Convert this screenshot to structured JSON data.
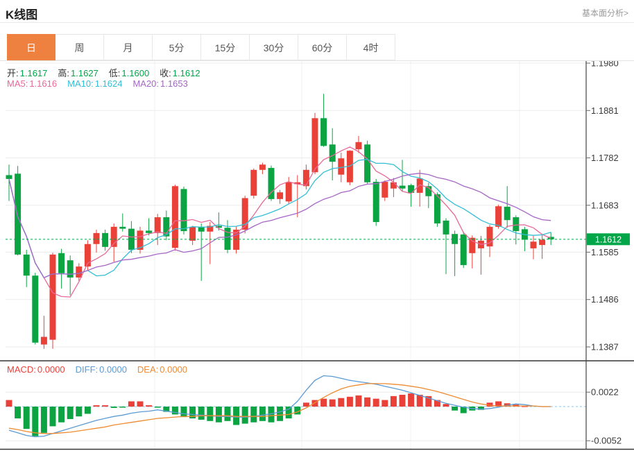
{
  "header": {
    "title": "K线图",
    "link": "基本面分析>"
  },
  "tabs": [
    {
      "key": "day",
      "label": "日",
      "active": true
    },
    {
      "key": "week",
      "label": "周",
      "active": false
    },
    {
      "key": "month",
      "label": "月",
      "active": false
    },
    {
      "key": "5min",
      "label": "5分",
      "active": false
    },
    {
      "key": "15min",
      "label": "15分",
      "active": false
    },
    {
      "key": "30min",
      "label": "30分",
      "active": false
    },
    {
      "key": "60min",
      "label": "60分",
      "active": false
    },
    {
      "key": "4hour",
      "label": "4时",
      "active": false
    }
  ],
  "legend": {
    "ohlc": [
      {
        "label": "开:",
        "value": "1.1617"
      },
      {
        "label": "高:",
        "value": "1.1627"
      },
      {
        "label": "低:",
        "value": "1.1600"
      },
      {
        "label": "收:",
        "value": "1.1612"
      }
    ],
    "ma": [
      {
        "label": "MA5:",
        "value": "1.1616",
        "color": "#e8689a"
      },
      {
        "label": "MA10:",
        "value": "1.1624",
        "color": "#33bdd6"
      },
      {
        "label": "MA20:",
        "value": "1.1653",
        "color": "#a566c5"
      }
    ],
    "macd": [
      {
        "label": "MACD:",
        "value": "0.0000",
        "color": "#e94138"
      },
      {
        "label": "DIFF:",
        "value": "0.0000",
        "color": "#5b9bd5"
      },
      {
        "label": "DEA:",
        "value": "0.0000",
        "color": "#ef8b31"
      }
    ]
  },
  "colors": {
    "up": "#e94138",
    "down": "#0ca443",
    "price_green": "#00a648",
    "tab_active": "#ee8040",
    "grid": "#ececec",
    "vgrid": "#f0f0f0",
    "axis": "#3c3c3c",
    "tick_label": "#3a3a3a",
    "macd_zero_line": "#90c3e6"
  },
  "chart_data": {
    "type": "candlestick",
    "title": "K线图 (日)",
    "price_axis": {
      "side": "right",
      "ticks": [
        {
          "label": "1.1980",
          "price": 1.198
        },
        {
          "label": "1.1881",
          "price": 1.1881
        },
        {
          "label": "1.1782",
          "price": 1.1782
        },
        {
          "label": "1.1683",
          "price": 1.1683
        },
        {
          "label": "1.1585",
          "price": 1.1585
        },
        {
          "label": "1.1486",
          "price": 1.1486
        },
        {
          "label": "1.1387",
          "price": 1.1387
        }
      ],
      "range": [
        1.1387,
        1.198
      ]
    },
    "current_price": {
      "label": "1.1612",
      "price": 1.1612
    },
    "last_candle": {
      "open": 1.1617,
      "high": 1.1627,
      "low": 1.16,
      "close": 1.1612
    },
    "ma_periods": [
      5,
      10,
      20
    ],
    "ma_current": {
      "MA5": 1.1616,
      "MA10": 1.1624,
      "MA20": 1.1653
    },
    "candles": [
      [
        1.1746,
        1.1768,
        1.1692,
        1.1738
      ],
      [
        1.1749,
        1.1765,
        1.1578,
        1.158
      ],
      [
        1.158,
        1.159,
        1.1512,
        1.1536
      ],
      [
        1.1536,
        1.1542,
        1.1392,
        1.1396
      ],
      [
        1.1392,
        1.1452,
        1.1383,
        1.1408
      ],
      [
        1.1402,
        1.1584,
        1.1383,
        1.158
      ],
      [
        1.1583,
        1.1592,
        1.1509,
        1.1541
      ],
      [
        1.1568,
        1.1578,
        1.1495,
        1.1532
      ],
      [
        1.1532,
        1.1562,
        1.1525,
        1.1555
      ],
      [
        1.1555,
        1.161,
        1.1548,
        1.1602
      ],
      [
        1.1602,
        1.1632,
        1.1584,
        1.1625
      ],
      [
        1.1625,
        1.1632,
        1.1588,
        1.1596
      ],
      [
        1.1596,
        1.1645,
        1.1565,
        1.1638
      ],
      [
        1.1638,
        1.1666,
        1.1628,
        1.1634
      ],
      [
        1.1634,
        1.165,
        1.1583,
        1.159
      ],
      [
        1.159,
        1.1638,
        1.1582,
        1.163
      ],
      [
        1.163,
        1.1656,
        1.162,
        1.1625
      ],
      [
        1.1625,
        1.1665,
        1.16,
        1.1658
      ],
      [
        1.1658,
        1.1672,
        1.161,
        1.1618
      ],
      [
        1.1594,
        1.1726,
        1.1588,
        1.1723
      ],
      [
        1.1717,
        1.1722,
        1.1622,
        1.1629
      ],
      [
        1.1609,
        1.164,
        1.16,
        1.1638
      ],
      [
        1.1638,
        1.1645,
        1.1525,
        1.1628
      ],
      [
        1.1628,
        1.1648,
        1.156,
        1.164
      ],
      [
        1.164,
        1.1668,
        1.163,
        1.1636
      ],
      [
        1.1636,
        1.1652,
        1.1583,
        1.159
      ],
      [
        1.159,
        1.164,
        1.1582,
        1.1632
      ],
      [
        1.1632,
        1.1703,
        1.1624,
        1.1698
      ],
      [
        1.1703,
        1.176,
        1.1697,
        1.1757
      ],
      [
        1.1757,
        1.1772,
        1.1748,
        1.1768
      ],
      [
        1.1761,
        1.1766,
        1.1692,
        1.1696
      ],
      [
        1.1696,
        1.1715,
        1.1686,
        1.171
      ],
      [
        1.1691,
        1.1742,
        1.1686,
        1.1731
      ],
      [
        1.1727,
        1.1746,
        1.1658,
        1.1731
      ],
      [
        1.1723,
        1.1768,
        1.1716,
        1.1757
      ],
      [
        1.1752,
        1.1876,
        1.1748,
        1.1865
      ],
      [
        1.1865,
        1.1916,
        1.1805,
        1.1807
      ],
      [
        1.181,
        1.1844,
        1.1735,
        1.1774
      ],
      [
        1.1747,
        1.1793,
        1.1731,
        1.1781
      ],
      [
        1.1731,
        1.1798,
        1.1725,
        1.1797
      ],
      [
        1.18,
        1.1828,
        1.1792,
        1.1815
      ],
      [
        1.181,
        1.1818,
        1.1728,
        1.1731
      ],
      [
        1.1732,
        1.1738,
        1.164,
        1.1648
      ],
      [
        1.1699,
        1.1735,
        1.1692,
        1.1732
      ],
      [
        1.1718,
        1.174,
        1.17,
        1.1731
      ],
      [
        1.1724,
        1.1778,
        1.1712,
        1.1718
      ],
      [
        1.1725,
        1.1728,
        1.168,
        1.1709
      ],
      [
        1.1709,
        1.1757,
        1.168,
        1.1739
      ],
      [
        1.1723,
        1.173,
        1.1677,
        1.1702
      ],
      [
        1.1706,
        1.171,
        1.1638,
        1.1645
      ],
      [
        1.1651,
        1.1656,
        1.1539,
        1.1622
      ],
      [
        1.1623,
        1.163,
        1.1535,
        1.1602
      ],
      [
        1.1622,
        1.1628,
        1.1552,
        1.1558
      ],
      [
        1.1583,
        1.162,
        1.1551,
        1.1615
      ],
      [
        1.1593,
        1.1619,
        1.1538,
        1.1609
      ],
      [
        1.1597,
        1.1642,
        1.1575,
        1.1638
      ],
      [
        1.1638,
        1.1684,
        1.1634,
        1.1681
      ],
      [
        1.168,
        1.1723,
        1.1636,
        1.1652
      ],
      [
        1.1658,
        1.1662,
        1.1601,
        1.1629
      ],
      [
        1.1633,
        1.1638,
        1.1587,
        1.1611
      ],
      [
        1.1593,
        1.1619,
        1.157,
        1.1607
      ],
      [
        1.16,
        1.1623,
        1.1571,
        1.1611
      ],
      [
        1.1617,
        1.1627,
        1.16,
        1.1612
      ]
    ],
    "macd": {
      "unit": 0.0001,
      "ticks": [
        {
          "label": "0.0022",
          "value": 0.0022
        },
        {
          "label": "-0.0052",
          "value": -0.0052
        }
      ],
      "hist": [
        10,
        -18,
        -34,
        -45,
        -40,
        -30,
        -24,
        -19,
        -15,
        -11,
        2,
        2,
        -2,
        -1,
        8,
        8,
        2,
        -1,
        -8,
        -12,
        -16,
        -18,
        -20,
        -22,
        -24,
        -22,
        -28,
        -26,
        -24,
        -22,
        -24,
        -22,
        -18,
        -12,
        6,
        10,
        12,
        11,
        13,
        15,
        17,
        14,
        12,
        10,
        16,
        18,
        20,
        18,
        16,
        10,
        4,
        -6,
        -10,
        -6,
        -5,
        6,
        8,
        5,
        3,
        1,
        0,
        0,
        0
      ],
      "diff": [
        -36,
        -40,
        -44,
        -46,
        -45,
        -41,
        -37,
        -33,
        -29,
        -25,
        -21,
        -18,
        -15,
        -13,
        -10,
        -8,
        -7,
        -5,
        -7,
        -9,
        -11,
        -12,
        -13,
        -14,
        -15,
        -15,
        -16,
        -16,
        -15,
        -13,
        -11,
        -8,
        -4,
        8,
        25,
        40,
        47,
        46,
        43,
        40,
        38,
        36,
        34,
        31,
        28,
        25,
        21,
        17,
        13,
        9,
        5,
        2,
        -1,
        -3,
        -4,
        -3,
        -1,
        2,
        4,
        3,
        1,
        0,
        0
      ],
      "dea": [
        -33,
        -35,
        -38,
        -40,
        -41,
        -41,
        -40,
        -39,
        -37,
        -35,
        -33,
        -31,
        -28,
        -26,
        -24,
        -22,
        -20,
        -18,
        -17,
        -16,
        -15,
        -15,
        -14,
        -14,
        -14,
        -14,
        -15,
        -15,
        -15,
        -15,
        -14,
        -13,
        -12,
        -8,
        -2,
        6,
        14,
        21,
        27,
        31,
        33,
        35,
        35,
        35,
        34,
        33,
        31,
        29,
        26,
        23,
        19,
        15,
        11,
        7,
        4,
        2,
        1,
        1,
        1,
        1,
        1,
        0,
        0
      ]
    }
  }
}
